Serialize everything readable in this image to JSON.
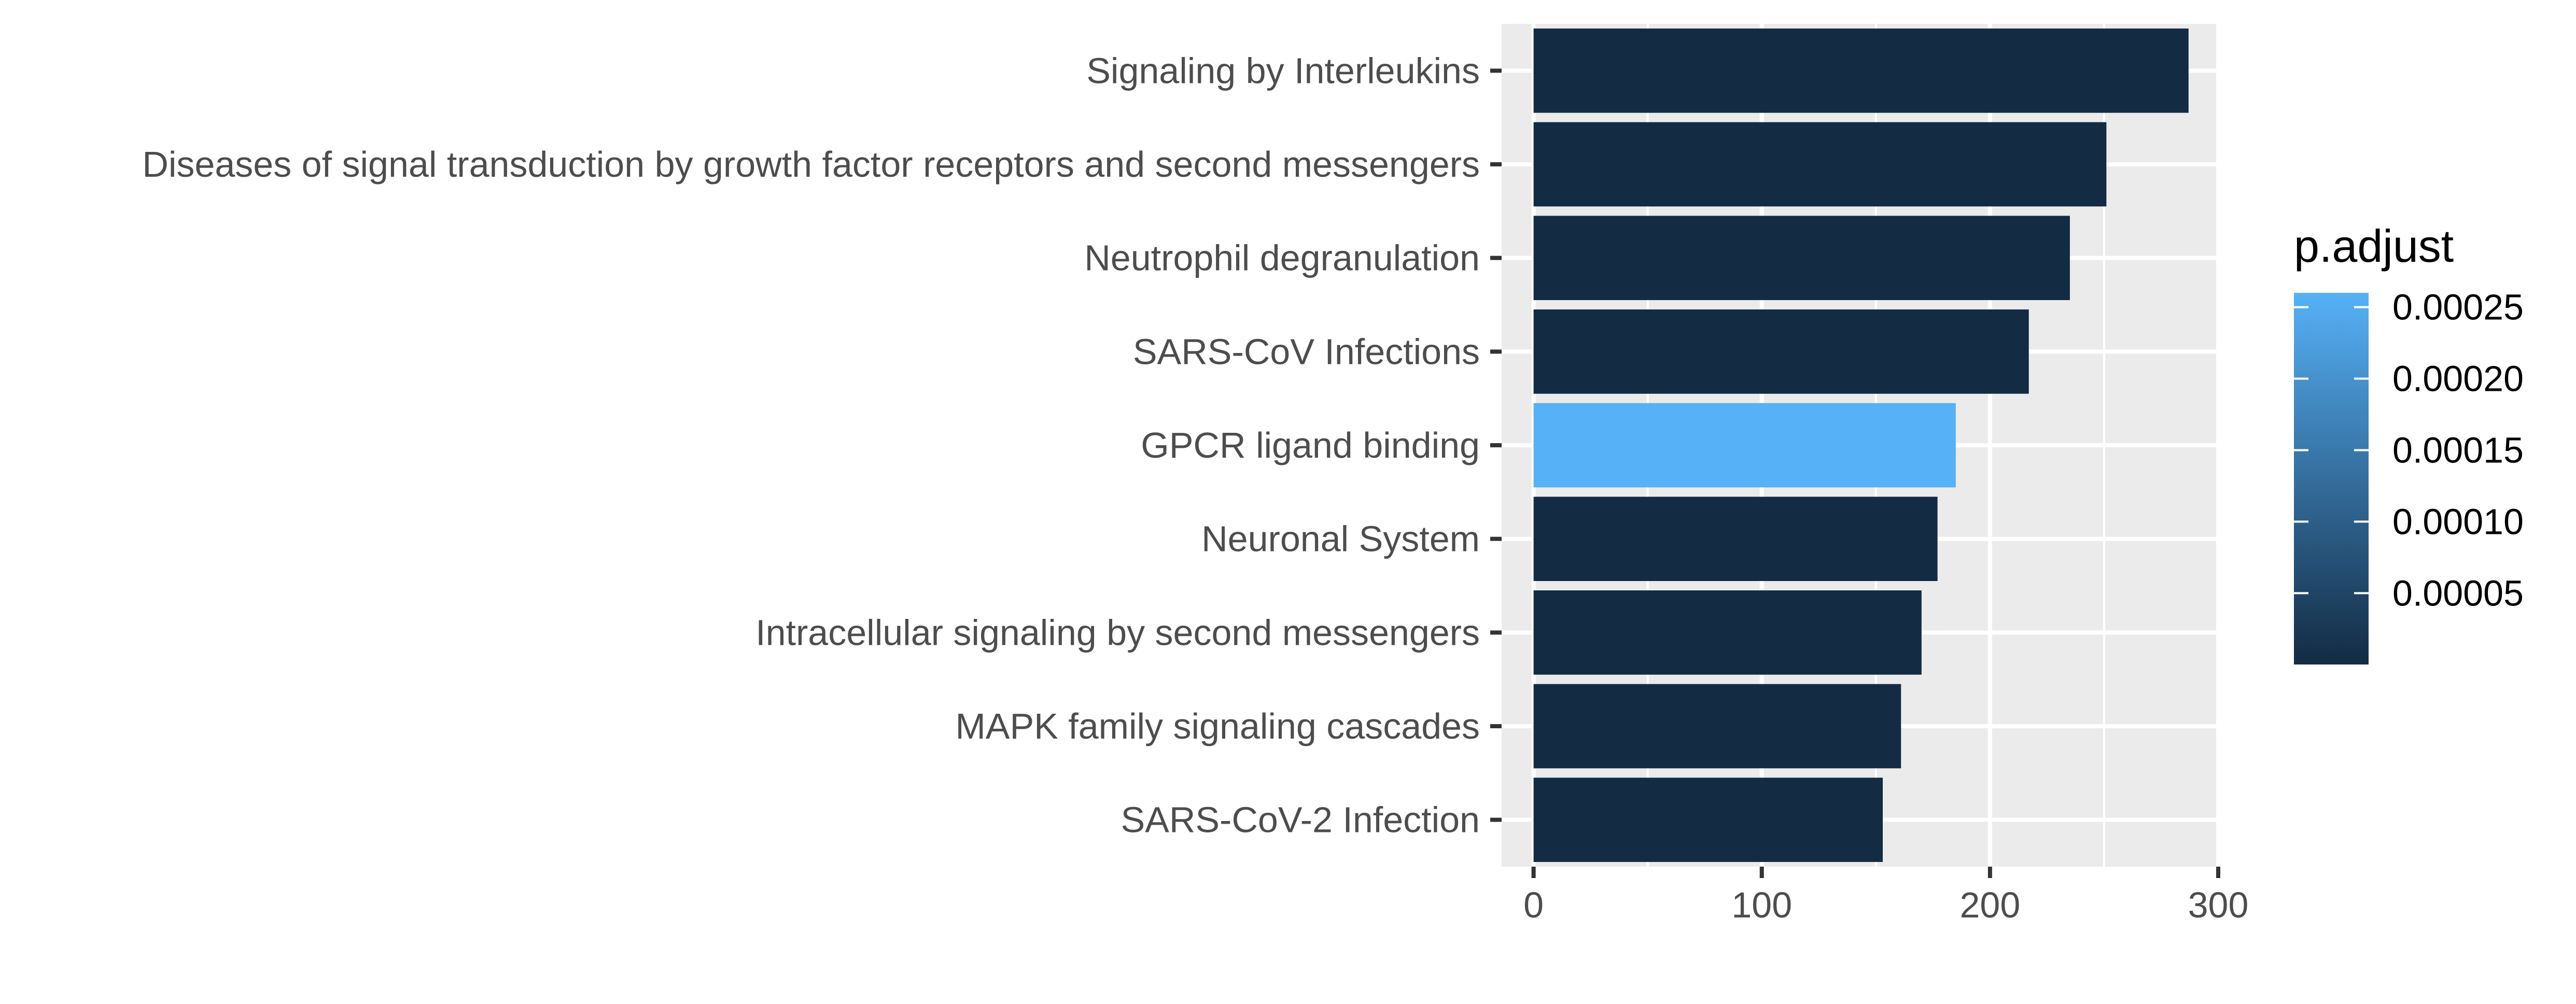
{
  "chart_data": {
    "type": "bar",
    "orientation": "horizontal",
    "categories": [
      "Signaling by Interleukins",
      "Diseases of signal transduction by growth factor receptors and second messengers",
      "Neutrophil degranulation",
      "SARS-CoV Infections",
      "GPCR ligand binding",
      "Neuronal System",
      "Intracellular signaling by second messengers",
      "MAPK family signaling cascades",
      "SARS-CoV-2 Infection"
    ],
    "values": [
      287,
      251,
      235,
      217,
      185,
      177,
      170,
      161,
      153
    ],
    "p_adjust": [
      1e-07,
      1e-07,
      1e-07,
      1e-07,
      0.00026,
      1e-07,
      1e-07,
      1e-07,
      1e-07
    ],
    "xlim": [
      -14,
      300
    ],
    "x_ticks": [
      0,
      100,
      200,
      300
    ],
    "x_tick_labels": [
      "0",
      "100",
      "200",
      "300"
    ],
    "grid": true,
    "legend": {
      "title": "p.adjust",
      "position": "right",
      "range": [
        1e-07,
        0.00026
      ],
      "ticks": [
        5e-05,
        0.0001,
        0.00015,
        0.0002,
        0.00025
      ],
      "tick_labels": [
        "0.00005",
        "0.00010",
        "0.00015",
        "0.00020",
        "0.00025"
      ],
      "low_color": "#132b43",
      "high_color": "#56b1f7"
    },
    "colors": {
      "panel_background": "#ebebeb",
      "grid_major": "#ffffff",
      "axis_text": "#4d4d4d",
      "tick_mark": "#333333"
    }
  }
}
